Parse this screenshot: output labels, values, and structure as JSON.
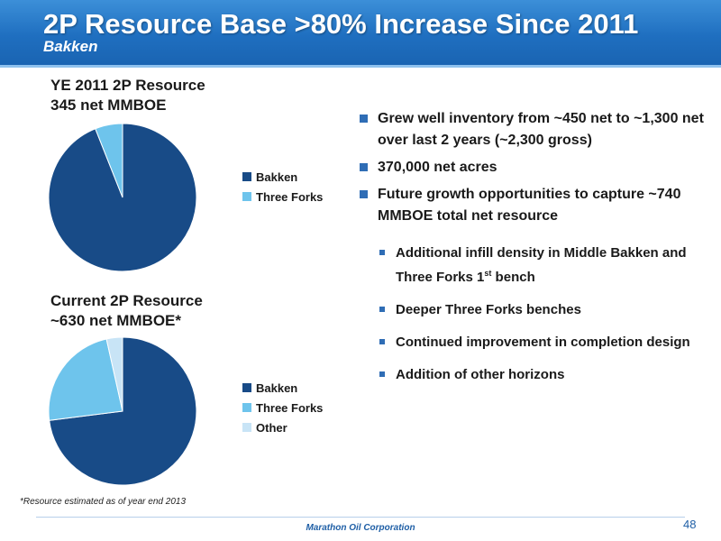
{
  "header": {
    "title": "2P Resource Base >80% Increase Since 2011",
    "subtitle": "Bakken"
  },
  "chart_data": [
    {
      "type": "pie",
      "title_lines": [
        "YE 2011 2P Resource",
        "345 net MMBOE"
      ],
      "slices": [
        {
          "name": "Bakken",
          "value": 94,
          "color": "#184b87"
        },
        {
          "name": "Three Forks",
          "value": 6,
          "color": "#6ec4ec"
        }
      ],
      "legend": [
        "Bakken",
        "Three Forks"
      ],
      "legend_position": "right"
    },
    {
      "type": "pie",
      "title_lines": [
        "Current 2P Resource",
        "~630 net MMBOE*"
      ],
      "slices": [
        {
          "name": "Bakken",
          "value": 73,
          "color": "#184b87"
        },
        {
          "name": "Three Forks",
          "value": 23.5,
          "color": "#6ec4ec"
        },
        {
          "name": "Other",
          "value": 3.5,
          "color": "#c8e4f6"
        }
      ],
      "legend": [
        "Bakken",
        "Three Forks",
        "Other"
      ],
      "legend_position": "right"
    }
  ],
  "bullets": [
    {
      "text": "Grew well inventory from ~450 net to ~1,300 net over last 2 years (~2,300 gross)",
      "sub": []
    },
    {
      "text": "370,000 net acres",
      "sub": []
    },
    {
      "text": "Future growth opportunities to capture ~740 MMBOE total net resource",
      "sub": [
        {
          "text": "Additional infill density in Middle Bakken and Three Forks 1",
          "sup": "st",
          "tail": " bench"
        },
        {
          "text": "Deeper Three Forks benches"
        },
        {
          "text": "Continued improvement in completion design"
        },
        {
          "text": "Addition of other horizons"
        }
      ]
    }
  ],
  "footnote": "*Resource estimated as of year end 2013",
  "footer": {
    "company": "Marathon Oil Corporation",
    "page": "48"
  }
}
